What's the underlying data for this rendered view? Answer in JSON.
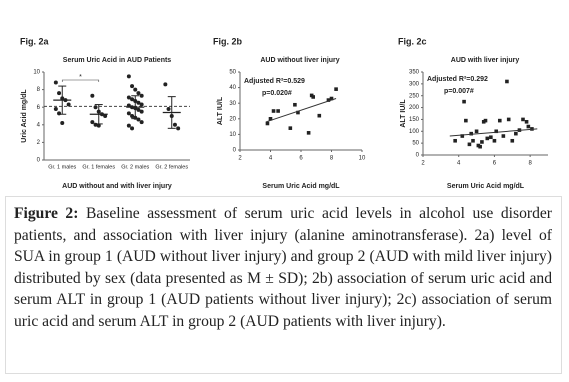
{
  "chart_data": [
    {
      "type": "strip",
      "panel_label": "Fig. 2a",
      "title": "Serum Uric Acid in AUD Patients",
      "ylabel": "Uric Acid mg/dL",
      "xlabel": "AUD without and with liver injury",
      "categories": [
        "Gr. 1 males",
        "Gr. 1 females",
        "Gr. 2 males",
        "Gr. 2 females"
      ],
      "points": [
        [
          8.8,
          7.6,
          7.0,
          6.8,
          6.3,
          5.8,
          5.3,
          4.2
        ],
        [
          7.3,
          6.0,
          5.5,
          5.2,
          5.0,
          4.3,
          4.0,
          3.9
        ],
        [
          9.5,
          8.4,
          8.0,
          7.6,
          7.3,
          7.1,
          6.9,
          6.7,
          6.5,
          6.3,
          6.2,
          6.0,
          5.9,
          5.7,
          5.5,
          5.3,
          5.0,
          4.8,
          4.6,
          4.3,
          3.9,
          3.6
        ],
        [
          8.6,
          5.8,
          5.0,
          4.0,
          3.6
        ]
      ],
      "means": [
        6.8,
        5.2,
        6.0,
        5.4
      ],
      "sd": [
        1.6,
        1.1,
        1.3,
        1.8
      ],
      "reference_line": 6.1,
      "annotation": "*",
      "color": "#222222",
      "ylim": [
        0,
        10
      ],
      "yticks": [
        0,
        2,
        4,
        6,
        8,
        10
      ]
    },
    {
      "type": "scatter",
      "panel_label": "Fig. 2b",
      "title": "AUD without liver injury",
      "ylabel": "ALT IU/L",
      "xlabel": "Serum Uric Acid mg/dL",
      "annotations": [
        "Adjusted R²=0.529",
        "p=0.020#"
      ],
      "x": [
        3.8,
        4.0,
        4.2,
        4.5,
        5.3,
        5.6,
        5.8,
        6.5,
        6.7,
        6.8,
        7.2,
        7.8,
        8.0,
        8.3
      ],
      "values": [
        17,
        20,
        25,
        25,
        14,
        29,
        24,
        11,
        35,
        34,
        22,
        32,
        33,
        39
      ],
      "trendline": {
        "x": [
          3.7,
          8.3
        ],
        "y": [
          18,
          33
        ]
      },
      "color": "#222222",
      "xlim": [
        2,
        10
      ],
      "xticks": [
        2,
        4,
        6,
        8,
        10
      ],
      "ylim": [
        0,
        50
      ],
      "yticks": [
        0,
        10,
        20,
        30,
        40,
        50
      ]
    },
    {
      "type": "scatter",
      "panel_label": "Fig. 2c",
      "title": "AUD with liver injury",
      "ylabel": "ALT IU/L",
      "xlabel": "Serum Uric Acid mg/dL",
      "annotations": [
        "Adjusted R²=0.292",
        "p=0.007#"
      ],
      "x": [
        3.8,
        4.2,
        4.3,
        4.4,
        4.6,
        4.7,
        4.8,
        5.0,
        5.1,
        5.2,
        5.3,
        5.4,
        5.5,
        5.6,
        5.8,
        6.0,
        6.1,
        6.3,
        6.5,
        6.7,
        6.8,
        7.0,
        7.2,
        7.4,
        7.6,
        7.8,
        7.9,
        8.1
      ],
      "values": [
        60,
        80,
        225,
        145,
        45,
        90,
        60,
        100,
        40,
        35,
        55,
        140,
        145,
        70,
        75,
        60,
        100,
        145,
        80,
        310,
        150,
        60,
        90,
        105,
        150,
        140,
        120,
        110
      ],
      "trendline": {
        "x": [
          3.5,
          8.4
        ],
        "y": [
          80,
          110
        ]
      },
      "color": "#222222",
      "xlim": [
        2,
        9
      ],
      "xticks": [
        2,
        4,
        6,
        8
      ],
      "ylim": [
        0,
        350
      ],
      "yticks": [
        0,
        50,
        100,
        150,
        200,
        250,
        300,
        350
      ]
    }
  ],
  "caption": {
    "label": "Figure 2:",
    "text": "Baseline assessment of serum uric acid levels in alcohol use disorder patients, and association with liver injury (alanine aminotransferase). 2a) level of SUA in group 1 (AUD without liver injury) and group 2 (AUD with mild liver injury) distributed by sex (data presented as M ± SD); 2b) association of serum uric acid and serum ALT in group 1 (AUD patients without liver injury); 2c) association of serum uric acid and serum ALT in group 2 (AUD patients with liver injury)."
  }
}
